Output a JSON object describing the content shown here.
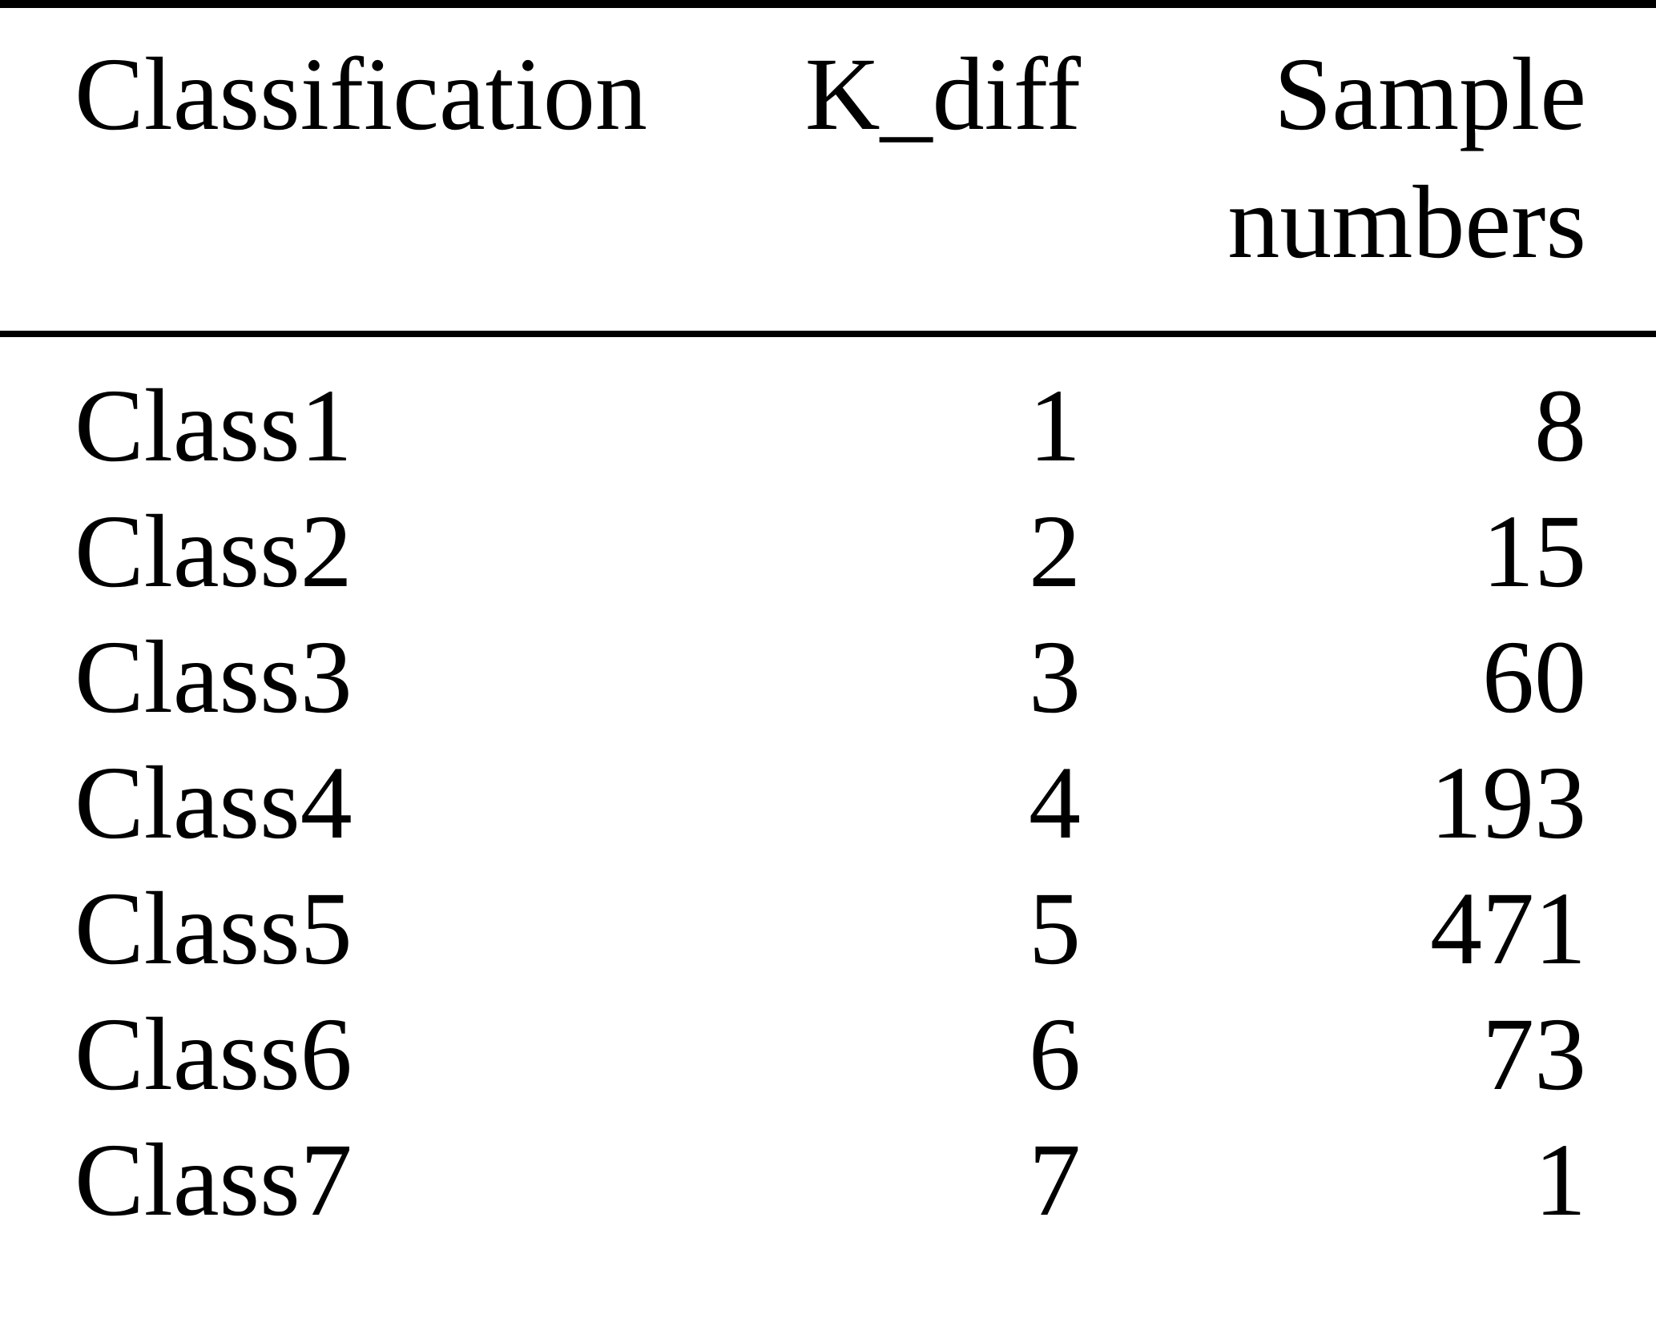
{
  "table": {
    "columns": [
      {
        "key": "classification",
        "label": "Classification"
      },
      {
        "key": "k_diff",
        "label": "K_diff"
      },
      {
        "key": "sample_numbers",
        "label": "Sample numbers"
      }
    ],
    "rows": [
      {
        "classification": "Class1",
        "k_diff": "1",
        "sample_numbers": "8"
      },
      {
        "classification": "Class2",
        "k_diff": "2",
        "sample_numbers": "15"
      },
      {
        "classification": "Class3",
        "k_diff": "3",
        "sample_numbers": "60"
      },
      {
        "classification": "Class4",
        "k_diff": "4",
        "sample_numbers": "193"
      },
      {
        "classification": "Class5",
        "k_diff": "5",
        "sample_numbers": "471"
      },
      {
        "classification": "Class6",
        "k_diff": "6",
        "sample_numbers": "73"
      },
      {
        "classification": "Class7",
        "k_diff": "7",
        "sample_numbers": "1"
      }
    ],
    "style": {
      "text_color": "#000000",
      "background_color": "#ffffff",
      "rule_color": "#000000"
    }
  }
}
